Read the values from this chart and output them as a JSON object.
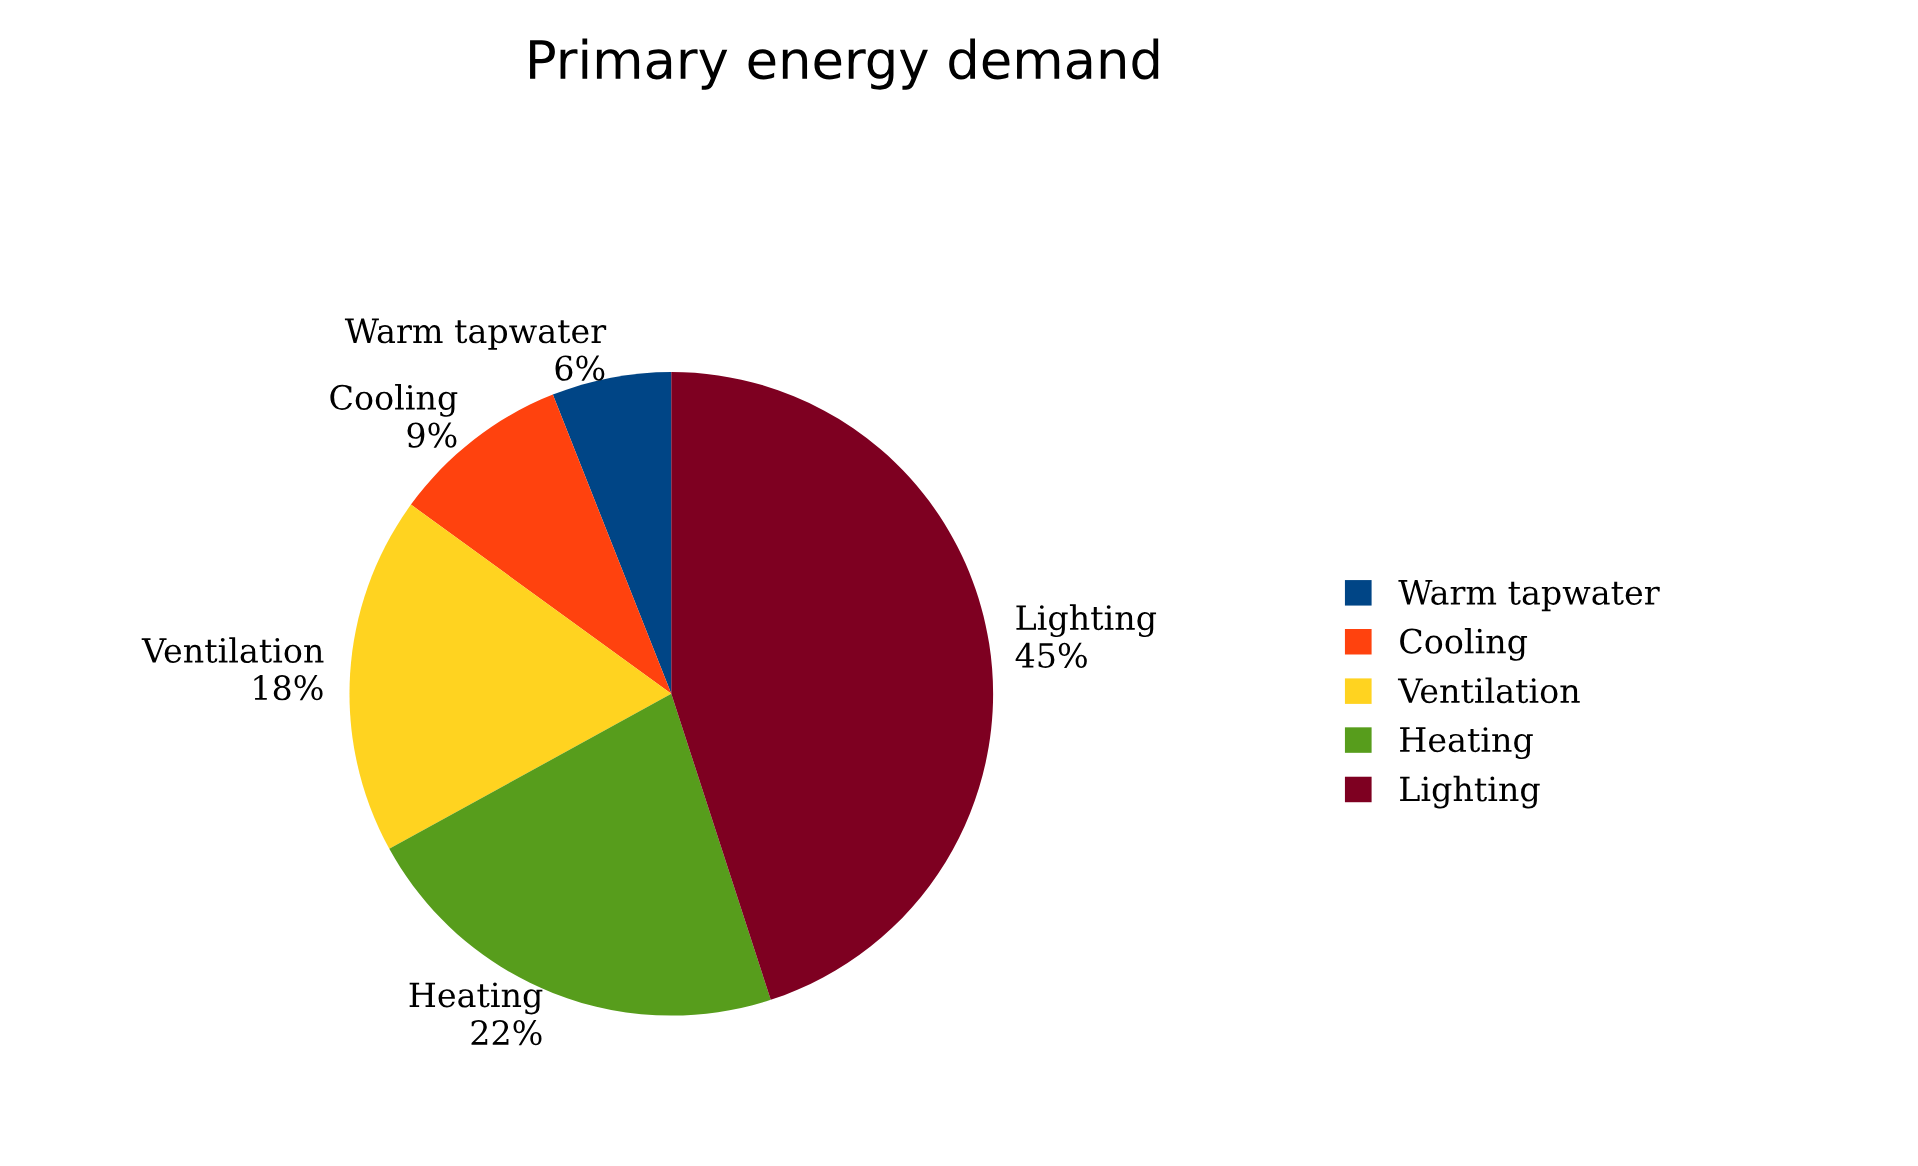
{
  "chart_data": {
    "type": "pie",
    "title": "Primary energy demand",
    "categories": [
      "Warm tapwater",
      "Cooling",
      "Ventilation",
      "Heating",
      "Lighting"
    ],
    "values": [
      6,
      9,
      18,
      22,
      45
    ],
    "value_labels": [
      "6%",
      "9%",
      "18%",
      "22%",
      "45%"
    ],
    "colors": [
      "#004586",
      "#ff420e",
      "#ffd320",
      "#579d1c",
      "#7e0021"
    ],
    "legend": "right"
  }
}
